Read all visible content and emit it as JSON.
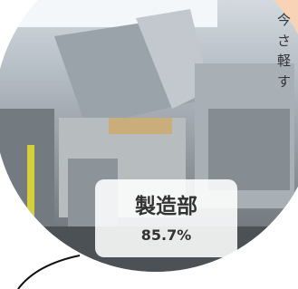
{
  "callout": {
    "lines": [
      "今",
      "さ",
      "軽",
      "す"
    ]
  },
  "label": {
    "title": "製造部",
    "value": "85.7%"
  }
}
